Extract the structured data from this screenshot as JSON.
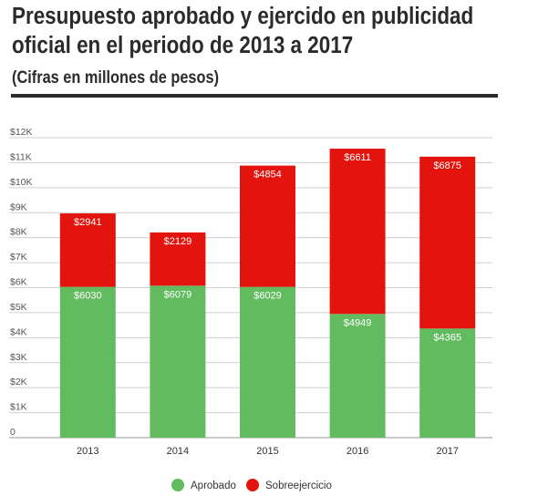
{
  "header": {
    "title_line1": "Presupuesto aprobado y ejercido en publicidad",
    "title_line2": "oficial en el periodo de 2013 a 2017",
    "subtitle": "(Cifras en millones de pesos)"
  },
  "chart_data": {
    "type": "bar",
    "stacked": true,
    "title": "Presupuesto aprobado y ejercido en publicidad oficial en el periodo de 2013 a 2017",
    "subtitle": "(Cifras en millones de pesos)",
    "categories": [
      "2013",
      "2014",
      "2015",
      "2016",
      "2017"
    ],
    "series": [
      {
        "name": "Aprobado",
        "color": "#63bb60",
        "values": [
          6030,
          6079,
          6029,
          4949,
          4365
        ],
        "labels": [
          "$6030",
          "$6079",
          "$6029",
          "$4949",
          "$4365"
        ]
      },
      {
        "name": "Sobreejercicio",
        "color": "#e3140d",
        "values": [
          2941,
          2129,
          4854,
          6611,
          6875
        ],
        "labels": [
          "$2941",
          "$2129",
          "$4854",
          "$6611",
          "$6875"
        ]
      }
    ],
    "ylim": [
      0,
      12000
    ],
    "yticks": [
      0,
      1000,
      2000,
      3000,
      4000,
      5000,
      6000,
      7000,
      8000,
      9000,
      10000,
      11000,
      12000
    ],
    "ytick_labels": [
      "0",
      "$1K",
      "$2K",
      "$3K",
      "$4K",
      "$5K",
      "$6K",
      "$7K",
      "$8K",
      "$9K",
      "$10K",
      "$11K",
      "$12K"
    ],
    "grid": true,
    "legend": "bottom"
  }
}
